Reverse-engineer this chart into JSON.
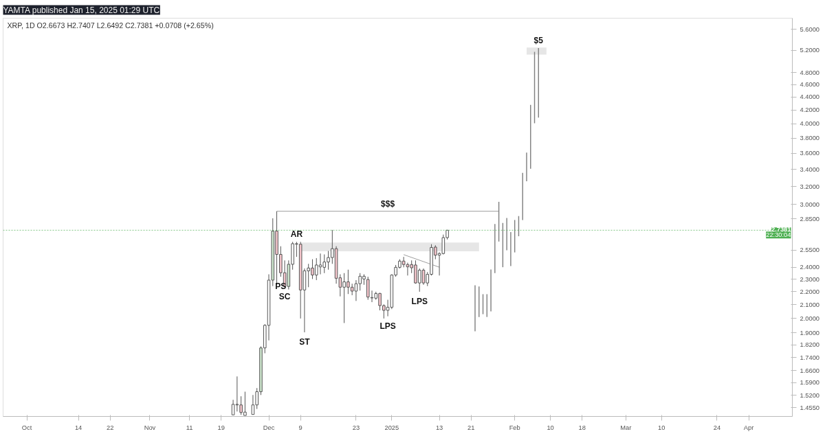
{
  "chart_data": {
    "type": "candlestick",
    "title": "YAMTA published Jan 15, 2025 01:29 UTC",
    "subtitle": "XRP, 1D  O2.6673 H2.7407 L2.6492 C2.7381 +0.0708 (+2.65%)",
    "log": "y",
    "xlim": [
      "2024-09-25",
      "2025-04-12"
    ],
    "ylim": [
      1.41,
      5.83
    ],
    "xticks": [
      {
        "value": "2024-10-01",
        "label": "Oct"
      },
      {
        "value": "2024-10-14",
        "label": "14"
      },
      {
        "value": "2024-10-22",
        "label": "22"
      },
      {
        "value": "2024-11-01",
        "label": "Nov"
      },
      {
        "value": "2024-11-11",
        "label": "11"
      },
      {
        "value": "2024-11-19",
        "label": "19"
      },
      {
        "value": "2024-12-01",
        "label": "Dec"
      },
      {
        "value": "2024-12-09",
        "label": "9"
      },
      {
        "value": "2024-12-23",
        "label": "23"
      },
      {
        "value": "2025-01-01",
        "label": "2025"
      },
      {
        "value": "2025-01-13",
        "label": "13"
      },
      {
        "value": "2025-01-21",
        "label": "21"
      },
      {
        "value": "2025-02-01",
        "label": "Feb"
      },
      {
        "value": "2025-02-10",
        "label": "10"
      },
      {
        "value": "2025-02-18",
        "label": "18"
      },
      {
        "value": "2025-03-01",
        "label": "Mar"
      },
      {
        "value": "2025-03-10",
        "label": "10"
      },
      {
        "value": "2025-03-24",
        "label": "24"
      },
      {
        "value": "2025-04-01",
        "label": "Apr"
      }
    ],
    "yticks": [
      {
        "value": 5.6,
        "label": "5.6000"
      },
      {
        "value": 5.2,
        "label": "5.2000"
      },
      {
        "value": 4.8,
        "label": "4.8000"
      },
      {
        "value": 4.6,
        "label": "4.6000"
      },
      {
        "value": 4.4,
        "label": "4.4000"
      },
      {
        "value": 4.2,
        "label": "4.2000"
      },
      {
        "value": 4.0,
        "label": "4.0000"
      },
      {
        "value": 3.8,
        "label": "3.8000"
      },
      {
        "value": 3.6,
        "label": "3.6000"
      },
      {
        "value": 3.4,
        "label": "3.4000"
      },
      {
        "value": 3.2,
        "label": "3.2000"
      },
      {
        "value": 3.0,
        "label": "3.0000"
      },
      {
        "value": 2.85,
        "label": "2.8500"
      },
      {
        "value": 2.55,
        "label": "2.5500"
      },
      {
        "value": 2.4,
        "label": "2.4000"
      },
      {
        "value": 2.3,
        "label": "2.3000"
      },
      {
        "value": 2.2,
        "label": "2.2000"
      },
      {
        "value": 2.1,
        "label": "2.1000"
      },
      {
        "value": 2.0,
        "label": "2.0000"
      },
      {
        "value": 1.9,
        "label": "1.9000"
      },
      {
        "value": 1.82,
        "label": "1.8200"
      },
      {
        "value": 1.74,
        "label": "1.7400"
      },
      {
        "value": 1.66,
        "label": "1.6600"
      },
      {
        "value": 1.59,
        "label": "1.5900"
      },
      {
        "value": 1.52,
        "label": "1.5200"
      },
      {
        "value": 1.455,
        "label": "1.4550"
      }
    ],
    "series": [
      {
        "type": "area",
        "x": [
          "2024-12-09",
          "2024-12-09",
          "2025-01-23",
          "2025-01-23"
        ],
        "values": [
          2.54,
          2.62,
          2.62,
          2.54
        ],
        "color": "#e6e6e6"
      },
      {
        "type": "area",
        "x": [
          "2025-02-04",
          "2025-02-04",
          "2025-02-09",
          "2025-02-09"
        ],
        "values": [
          5.12,
          5.25,
          5.25,
          5.12
        ],
        "color": "#e6e6e6"
      },
      {
        "type": "line",
        "x": [
          "2024-12-03",
          "2025-01-28"
        ],
        "values": [
          2.93,
          2.93
        ],
        "color": "#9e9e9e",
        "line_style": "solid"
      },
      {
        "type": "line",
        "x": [
          "2025-01-04",
          "2025-01-13"
        ],
        "values": [
          2.51,
          2.4
        ],
        "color": "#9e9e9e",
        "line_style": "solid"
      },
      {
        "x": [
          "2024-11-22",
          "2024-11-23",
          "2024-11-24",
          "2024-11-25",
          "2024-11-27",
          "2024-11-28",
          "2024-11-29",
          "2024-11-30",
          "2024-12-01",
          "2024-12-02",
          "2024-12-03",
          "2024-12-04",
          "2024-12-05",
          "2024-12-06",
          "2024-12-07",
          "2024-12-08",
          "2024-12-09",
          "2024-12-10",
          "2024-12-11",
          "2024-12-12",
          "2024-12-13",
          "2024-12-14",
          "2024-12-15",
          "2024-12-16",
          "2024-12-17",
          "2024-12-18",
          "2024-12-19",
          "2024-12-20",
          "2024-12-21",
          "2024-12-22",
          "2024-12-23",
          "2024-12-24",
          "2024-12-25",
          "2024-12-26",
          "2024-12-27",
          "2024-12-28",
          "2024-12-29",
          "2024-12-30",
          "2024-12-31",
          "2025-01-01",
          "2025-01-02",
          "2025-01-03",
          "2025-01-04",
          "2025-01-05",
          "2025-01-06",
          "2025-01-07",
          "2025-01-08",
          "2025-01-09",
          "2025-01-10",
          "2025-01-11",
          "2025-01-12",
          "2025-01-13",
          "2025-01-14",
          "2025-01-15"
        ],
        "ohlc": [
          [
            1.418,
            1.496,
            1.418,
            1.472
          ],
          [
            1.469,
            1.626,
            1.435,
            1.472
          ],
          [
            1.469,
            1.515,
            1.418,
            1.43
          ],
          [
            1.415,
            1.54,
            1.415,
            1.432
          ],
          [
            1.42,
            1.522,
            1.42,
            1.469
          ],
          [
            1.469,
            1.56,
            1.448,
            1.54
          ],
          [
            1.54,
            1.81,
            1.522,
            1.8
          ],
          [
            1.8,
            1.959,
            1.766,
            1.951
          ],
          [
            1.951,
            2.34,
            1.849,
            2.292
          ],
          [
            2.292,
            2.857,
            2.244,
            2.73
          ],
          [
            2.73,
            2.929,
            2.254,
            2.512
          ],
          [
            2.512,
            2.586,
            2.32,
            2.353
          ],
          [
            2.353,
            2.459,
            2.235,
            2.241
          ],
          [
            2.241,
            2.459,
            2.217,
            2.425
          ],
          [
            2.425,
            2.627,
            2.379,
            2.61
          ],
          [
            2.605,
            2.627,
            2.49,
            2.61
          ],
          [
            2.605,
            2.627,
            1.999,
            2.213
          ],
          [
            2.213,
            2.389,
            1.903,
            2.369
          ],
          [
            2.369,
            2.429,
            2.235,
            2.393
          ],
          [
            2.393,
            2.469,
            2.301,
            2.334
          ],
          [
            2.334,
            2.479,
            2.292,
            2.419
          ],
          [
            2.403,
            2.52,
            2.34,
            2.419
          ],
          [
            2.399,
            2.512,
            2.35,
            2.445
          ],
          [
            2.445,
            2.543,
            2.379,
            2.484
          ],
          [
            2.484,
            2.741,
            2.429,
            2.564
          ],
          [
            2.564,
            2.586,
            2.263,
            2.307
          ],
          [
            2.311,
            2.34,
            2.163,
            2.235
          ],
          [
            2.235,
            2.35,
            1.967,
            2.278
          ],
          [
            2.278,
            2.379,
            2.181,
            2.235
          ],
          [
            2.235,
            2.263,
            2.172,
            2.204
          ],
          [
            2.204,
            2.292,
            2.128,
            2.263
          ],
          [
            2.263,
            2.35,
            2.208,
            2.324
          ],
          [
            2.301,
            2.34,
            2.254,
            2.324
          ],
          [
            2.297,
            2.32,
            2.137,
            2.158
          ],
          [
            2.151,
            2.208,
            2.119,
            2.154
          ],
          [
            2.149,
            2.199,
            2.137,
            2.185
          ],
          [
            2.186,
            2.19,
            2.058,
            2.093
          ],
          [
            2.093,
            2.102,
            1.999,
            2.058
          ],
          [
            2.058,
            2.137,
            2.015,
            2.081
          ],
          [
            2.081,
            2.34,
            2.067,
            2.334
          ],
          [
            2.334,
            2.419,
            2.32,
            2.399
          ],
          [
            2.399,
            2.469,
            2.389,
            2.453
          ],
          [
            2.453,
            2.49,
            2.399,
            2.423
          ],
          [
            2.423,
            2.439,
            2.33,
            2.403
          ],
          [
            2.423,
            2.459,
            2.35,
            2.395
          ],
          [
            2.419,
            2.459,
            2.263,
            2.269
          ],
          [
            2.269,
            2.389,
            2.199,
            2.375
          ],
          [
            2.375,
            2.389,
            2.254,
            2.269
          ],
          [
            2.269,
            2.359,
            2.244,
            2.34
          ],
          [
            2.34,
            2.605,
            2.33,
            2.575
          ],
          [
            2.578,
            2.595,
            2.469,
            2.505
          ],
          [
            2.505,
            2.531,
            2.33,
            2.52
          ],
          [
            2.52,
            2.696,
            2.512,
            2.667
          ],
          [
            2.6673,
            2.7407,
            2.6492,
            2.7381
          ]
        ],
        "colors": [
          "#ffffff",
          "#ffffff",
          "#f5c6cc",
          "#ffffff",
          "#ffffff",
          "#ffffff",
          "#cfe8cf",
          "#ffffff",
          "#ffffff",
          "#cfe8cf",
          "#f5c6cc",
          "#f5c6cc",
          "#f5c6cc",
          "#cfe8cf",
          "#ffffff",
          "#ffffff",
          "#f5c6cc",
          "#ffffff",
          "#ffffff",
          "#f5c6cc",
          "#ffffff",
          "#ffffff",
          "#ffffff",
          "#ffffff",
          "#ffffff",
          "#f5c6cc",
          "#f5c6cc",
          "#ffffff",
          "#f5c6cc",
          "#f5c6cc",
          "#ffffff",
          "#ffffff",
          "#ffffff",
          "#f5c6cc",
          "#ffffff",
          "#ffffff",
          "#f5c6cc",
          "#f5c6cc",
          "#ffffff",
          "#ffffff",
          "#ffffff",
          "#ffffff",
          "#f5c6cc",
          "#f5c6cc",
          "#f5c6cc",
          "#f5c6cc",
          "#ffffff",
          "#f5c6cc",
          "#ffffff",
          "#ffffff",
          "#f5c6cc",
          "#ffffff",
          "#ffffff",
          "#ffffff"
        ]
      },
      {
        "type": "bar",
        "x": [
          "2025-01-22",
          "2025-01-23",
          "2025-01-24",
          "2025-01-25",
          "2025-01-26",
          "2025-01-27",
          "2025-01-28",
          "2025-01-29",
          "2025-01-30",
          "2025-01-31",
          "2025-02-01",
          "2025-02-02",
          "2025-02-03",
          "2025-02-04",
          "2025-02-05",
          "2025-02-06",
          "2025-02-07"
        ],
        "base": [
          1.91,
          2.01,
          2.03,
          2.01,
          2.05,
          2.35,
          2.63,
          2.4,
          2.55,
          2.41,
          2.53,
          2.68,
          2.84,
          3.26,
          3.41,
          4.01,
          4.09
        ],
        "values": [
          0.34,
          0.23,
          0.15,
          0.17,
          0.33,
          0.45,
          0.4,
          0.41,
          0.31,
          0.31,
          0.31,
          0.2,
          0.52,
          0.35,
          0.87,
          1.16,
          1.15
        ],
        "color": "#808080"
      }
    ],
    "ref_lines": [
      {
        "axis": "y",
        "value": 2.7381,
        "label": "2.7381",
        "color": "#4caf50",
        "line_style": "dotted"
      }
    ],
    "annotations": [
      "22:30:04",
      {
        "text": "PS",
        "x": "2024-12-04",
        "y": 2.32
      },
      {
        "text": "SC",
        "x": "2024-12-05",
        "y": 2.235
      },
      {
        "text": "AR",
        "x": "2024-12-08",
        "y": 2.627
      },
      {
        "text": "ST",
        "x": "2024-12-10",
        "y": 1.903
      },
      {
        "text": "LPS",
        "x": "2024-12-31",
        "y": 2.015
      },
      {
        "text": "LPS",
        "x": "2025-01-08",
        "y": 2.199
      },
      {
        "text": "$$$",
        "x": "2024-12-31",
        "y": 2.93
      },
      {
        "text": "$5",
        "x": "2025-02-07",
        "y": 5.24
      }
    ]
  }
}
